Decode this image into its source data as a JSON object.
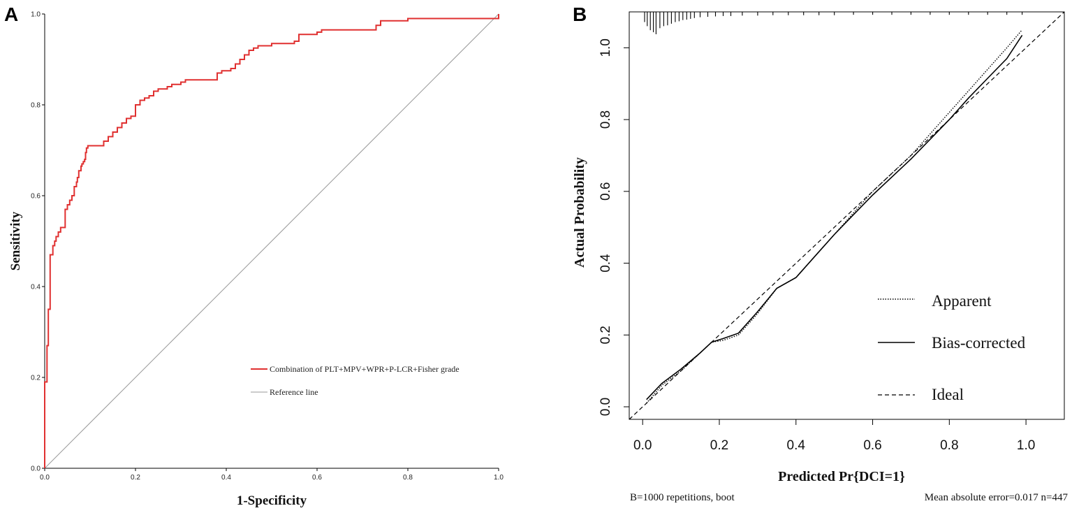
{
  "chart_data": [
    {
      "panel": "A",
      "type": "line",
      "title": "",
      "xlabel": "1-Specificity",
      "ylabel": "Sensitivity",
      "xlim": [
        0,
        1
      ],
      "ylim": [
        0,
        1
      ],
      "xticks": [
        "0.0",
        "0.2",
        "0.4",
        "0.6",
        "0.8",
        "1.0"
      ],
      "yticks": [
        "0.0",
        "0.2",
        "0.4",
        "0.6",
        "0.8",
        "1.0"
      ],
      "grid": false,
      "legend_position": "bottom-right",
      "colors": {
        "roc": "#e03030",
        "reference": "#999999"
      },
      "series": [
        {
          "name": "Combination of PLT+MPV+WPR+P-LCR+Fisher grade",
          "style": "step",
          "x": [
            0,
            0,
            0.005,
            0.005,
            0.008,
            0.008,
            0.012,
            0.012,
            0.018,
            0.018,
            0.022,
            0.025,
            0.03,
            0.035,
            0.045,
            0.045,
            0.05,
            0.05,
            0.055,
            0.06,
            0.065,
            0.07,
            0.072,
            0.075,
            0.08,
            0.082,
            0.085,
            0.088,
            0.09,
            0.092,
            0.095,
            0.13,
            0.13,
            0.14,
            0.14,
            0.15,
            0.16,
            0.17,
            0.18,
            0.19,
            0.2,
            0.2,
            0.21,
            0.22,
            0.23,
            0.24,
            0.25,
            0.27,
            0.28,
            0.3,
            0.31,
            0.38,
            0.38,
            0.39,
            0.41,
            0.42,
            0.43,
            0.44,
            0.45,
            0.46,
            0.47,
            0.5,
            0.55,
            0.56,
            0.6,
            0.61,
            0.73,
            0.74,
            0.8,
            1.0,
            1.0
          ],
          "y": [
            0,
            0.19,
            0.21,
            0.27,
            0.3,
            0.35,
            0.37,
            0.47,
            0.485,
            0.49,
            0.5,
            0.51,
            0.52,
            0.53,
            0.55,
            0.57,
            0.575,
            0.58,
            0.59,
            0.6,
            0.62,
            0.63,
            0.64,
            0.655,
            0.665,
            0.67,
            0.675,
            0.68,
            0.695,
            0.705,
            0.71,
            0.715,
            0.72,
            0.725,
            0.73,
            0.74,
            0.75,
            0.76,
            0.77,
            0.775,
            0.78,
            0.8,
            0.81,
            0.815,
            0.82,
            0.83,
            0.835,
            0.84,
            0.845,
            0.85,
            0.855,
            0.86,
            0.87,
            0.875,
            0.88,
            0.89,
            0.9,
            0.91,
            0.92,
            0.925,
            0.93,
            0.935,
            0.94,
            0.955,
            0.96,
            0.965,
            0.975,
            0.985,
            0.99,
            0.995,
            1.0
          ]
        },
        {
          "name": "Reference line",
          "x": [
            0,
            1
          ],
          "y": [
            0,
            1
          ]
        }
      ]
    },
    {
      "panel": "B",
      "type": "line",
      "title": "",
      "xlabel": "Predicted Pr{DCI=1}",
      "ylabel": "Actual  Probability",
      "xlim": [
        -0.035,
        1.1
      ],
      "ylim": [
        -0.035,
        1.1
      ],
      "xticks": [
        "0.0",
        "0.2",
        "0.4",
        "0.6",
        "0.8",
        "1.0"
      ],
      "yticks": [
        "0.0",
        "0.2",
        "0.4",
        "0.6",
        "0.8",
        "1.0"
      ],
      "grid": false,
      "legend_position": "bottom-right",
      "series": [
        {
          "name": "Apparent",
          "linestyle": "dotted",
          "x": [
            0.01,
            0.05,
            0.1,
            0.15,
            0.18,
            0.21,
            0.25,
            0.3,
            0.35,
            0.4,
            0.45,
            0.5,
            0.55,
            0.6,
            0.65,
            0.7,
            0.75,
            0.8,
            0.85,
            0.9,
            0.95,
            0.99
          ],
          "y": [
            0.01,
            0.06,
            0.1,
            0.15,
            0.18,
            0.185,
            0.2,
            0.26,
            0.33,
            0.36,
            0.42,
            0.48,
            0.54,
            0.6,
            0.65,
            0.7,
            0.76,
            0.82,
            0.88,
            0.94,
            1.0,
            1.05
          ]
        },
        {
          "name": "Bias-corrected",
          "linestyle": "solid",
          "x": [
            0.01,
            0.05,
            0.1,
            0.15,
            0.18,
            0.21,
            0.25,
            0.3,
            0.35,
            0.4,
            0.45,
            0.5,
            0.55,
            0.6,
            0.65,
            0.7,
            0.75,
            0.8,
            0.85,
            0.9,
            0.95,
            0.99
          ],
          "y": [
            0.02,
            0.065,
            0.105,
            0.15,
            0.18,
            0.19,
            0.205,
            0.265,
            0.33,
            0.36,
            0.42,
            0.48,
            0.535,
            0.59,
            0.64,
            0.69,
            0.745,
            0.8,
            0.86,
            0.915,
            0.97,
            1.035
          ]
        },
        {
          "name": "Ideal",
          "linestyle": "dashed",
          "x": [
            -0.035,
            1.1
          ],
          "y": [
            -0.035,
            1.1
          ]
        }
      ],
      "rug": [
        0.005,
        0.012,
        0.02,
        0.028,
        0.035,
        0.045,
        0.055,
        0.065,
        0.075,
        0.085,
        0.095,
        0.105,
        0.115,
        0.125,
        0.135,
        0.15,
        0.17,
        0.19,
        0.21,
        0.23,
        0.26,
        0.3,
        0.34,
        0.38,
        0.42,
        0.46,
        0.5,
        0.55,
        0.6,
        0.65,
        0.7,
        0.75,
        0.8,
        0.85,
        0.9,
        0.95,
        0.99
      ],
      "rug_counts": [
        20,
        30,
        40,
        45,
        50,
        35,
        30,
        28,
        24,
        20,
        18,
        15,
        14,
        12,
        10,
        8,
        7,
        6,
        5,
        5,
        4,
        4,
        3,
        3,
        3,
        3,
        3,
        2,
        2,
        2,
        2,
        2,
        2,
        2,
        2,
        2,
        2
      ],
      "annotations": {
        "left": "B=1000 repetitions, boot",
        "right": "Mean absolute error=0.017 n=447"
      }
    }
  ]
}
